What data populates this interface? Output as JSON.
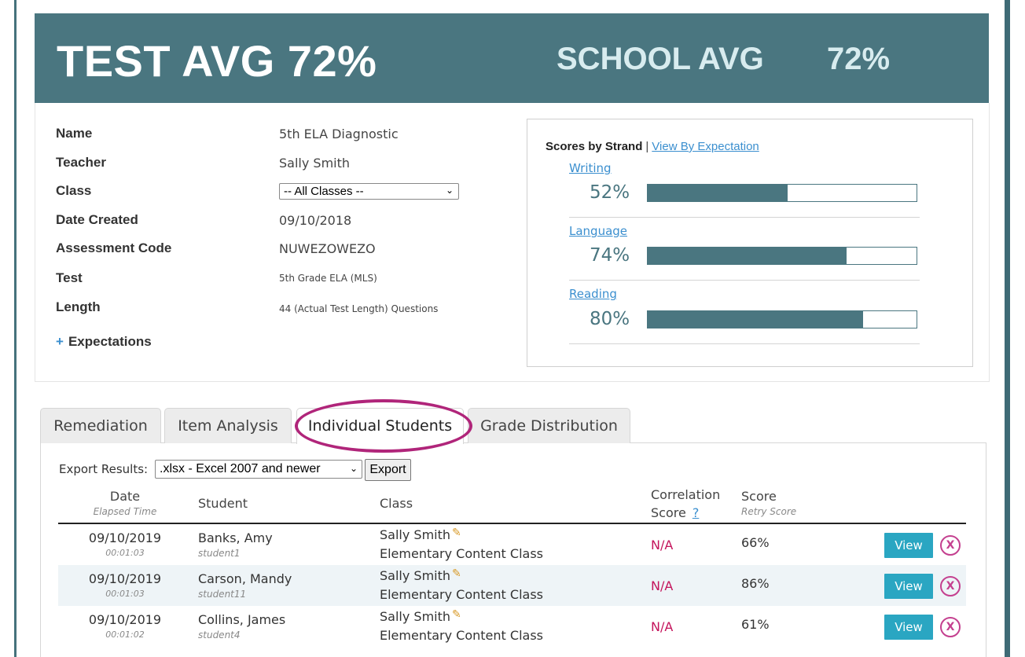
{
  "banner": {
    "test_avg": "TEST AVG 72%",
    "school_avg_label": "SCHOOL AVG",
    "school_avg_value": "72%"
  },
  "info": {
    "name_label": "Name",
    "name_value": "5th ELA Diagnostic",
    "teacher_label": "Teacher",
    "teacher_value": "Sally Smith",
    "class_label": "Class",
    "class_value": "-- All Classes --",
    "date_label": "Date Created",
    "date_value": "09/10/2018",
    "code_label": "Assessment Code",
    "code_value": "NUWEZOWEZO",
    "test_label": "Test",
    "test_value": "5th Grade ELA (MLS)",
    "length_label": "Length",
    "length_value": "44 (Actual Test Length) Questions",
    "expectations_plus": "+",
    "expectations_label": "Expectations"
  },
  "strands": {
    "title": "Scores by Strand",
    "separator": "|",
    "view_link": "View By Expectation",
    "items": [
      {
        "name": "Writing",
        "pct_label": "52%",
        "value": 52
      },
      {
        "name": "Language",
        "pct_label": "74%",
        "value": 74
      },
      {
        "name": "Reading",
        "pct_label": "80%",
        "value": 80
      }
    ]
  },
  "tabs": [
    "Remediation",
    "Item Analysis",
    "Individual Students",
    "Grade Distribution"
  ],
  "active_tab": "Individual Students",
  "export": {
    "label": "Export Results:",
    "format": ".xlsx - Excel 2007 and newer",
    "button": "Export"
  },
  "columns": {
    "date": "Date",
    "date_sub": "Elapsed Time",
    "student": "Student",
    "class": "Class",
    "correlation_line1": "Correlation",
    "correlation_line2": "Score",
    "correlation_help": "?",
    "score": "Score",
    "score_sub": "Retry Score"
  },
  "rows": [
    {
      "date": "09/10/2019",
      "elapsed": "00:01:03",
      "student": "Banks, Amy",
      "username": "student1",
      "teacher": "Sally Smith",
      "class": "Elementary Content Class",
      "correlation": "N/A",
      "score": "66%",
      "view": "View",
      "delete": "X"
    },
    {
      "date": "09/10/2019",
      "elapsed": "00:01:03",
      "student": "Carson, Mandy",
      "username": "student11",
      "teacher": "Sally Smith",
      "class": "Elementary Content Class",
      "correlation": "N/A",
      "score": "86%",
      "view": "View",
      "delete": "X"
    },
    {
      "date": "09/10/2019",
      "elapsed": "00:01:02",
      "student": "Collins, James",
      "username": "student4",
      "teacher": "Sally Smith",
      "class": "Elementary Content Class",
      "correlation": "N/A",
      "score": "61%",
      "view": "View",
      "delete": "X"
    }
  ],
  "colors": {
    "banner": "#4a7680",
    "accent_link": "#3b8fcf",
    "view_button": "#2aa6c2",
    "na_text": "#c4135b",
    "highlight_ring": "#b0257a"
  },
  "icons": {
    "edit": "pencil-icon",
    "delete": "delete-circle-icon",
    "dropdown": "chevron-down-icon"
  }
}
